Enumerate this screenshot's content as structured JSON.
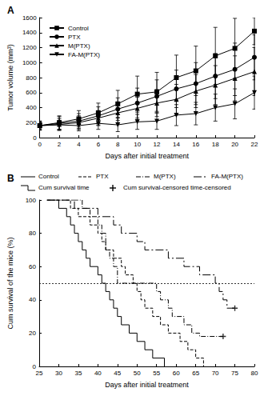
{
  "chart_data": [
    {
      "type": "line",
      "title": "A",
      "x_label": "Days after initial treatment",
      "y_label": "Tumor volume (mm³)",
      "x": [
        0,
        2,
        4,
        6,
        8,
        10,
        12,
        14,
        16,
        18,
        20,
        22
      ],
      "xlim": [
        0,
        22
      ],
      "xticks": [
        0,
        2,
        4,
        6,
        8,
        10,
        12,
        14,
        16,
        18,
        20,
        22
      ],
      "ylim": [
        0,
        1600
      ],
      "yticks": [
        0,
        200,
        400,
        600,
        800,
        1000,
        1200,
        1400,
        1600
      ],
      "grid": false,
      "legend": "upper left",
      "series": [
        {
          "name": "Control",
          "color": "#000000",
          "marker": "square",
          "values": [
            160,
            200,
            250,
            330,
            450,
            580,
            610,
            800,
            890,
            1090,
            1190,
            1420
          ],
          "errors": [
            60,
            90,
            110,
            130,
            180,
            240,
            260,
            300,
            330,
            380,
            400,
            180
          ]
        },
        {
          "name": "PTX",
          "color": "#000000",
          "marker": "circle",
          "values": [
            160,
            190,
            220,
            290,
            380,
            460,
            550,
            650,
            720,
            820,
            910,
            1070
          ],
          "errors": [
            60,
            90,
            100,
            120,
            150,
            200,
            220,
            250,
            280,
            300,
            350,
            300
          ]
        },
        {
          "name": "M(PTX)",
          "color": "#000000",
          "marker": "triangle",
          "values": [
            160,
            175,
            200,
            260,
            330,
            390,
            460,
            510,
            620,
            700,
            790,
            880
          ],
          "errors": [
            50,
            80,
            90,
            100,
            130,
            150,
            180,
            200,
            220,
            260,
            300,
            320
          ]
        },
        {
          "name": "FA-M(PTX)",
          "color": "#000000",
          "marker": "triangle_down",
          "values": [
            160,
            170,
            160,
            190,
            170,
            210,
            220,
            300,
            320,
            400,
            450,
            600
          ],
          "errors": [
            40,
            60,
            70,
            80,
            90,
            100,
            110,
            140,
            150,
            180,
            200,
            220
          ]
        }
      ]
    },
    {
      "type": "step",
      "title": "B",
      "x_label": "Days after initial treatment",
      "y_label": "Cum survival of the mice (%)",
      "xlim": [
        25,
        80
      ],
      "xticks": [
        25,
        30,
        35,
        40,
        45,
        50,
        55,
        60,
        65,
        70,
        75,
        80
      ],
      "ylim": [
        0,
        100
      ],
      "yticks": [
        0,
        20,
        40,
        60,
        80,
        100
      ],
      "grid": false,
      "legend": "top",
      "hline": 50,
      "survival_label": "Cum survival time",
      "censored_label": "Cum survival-censored time-censored",
      "series": [
        {
          "name": "Control",
          "color": "#000000",
          "line_style": "solid",
          "x": [
            27,
            30,
            32,
            33,
            34,
            35,
            36,
            37,
            38,
            40,
            41,
            42,
            43,
            44,
            45,
            46,
            48,
            50,
            52,
            54,
            57
          ],
          "values": [
            100,
            95,
            90,
            85,
            80,
            75,
            70,
            65,
            60,
            55,
            50,
            45,
            40,
            35,
            30,
            25,
            20,
            15,
            10,
            5,
            0
          ],
          "censored": []
        },
        {
          "name": "PTX",
          "color": "#000000",
          "line_style": "dashed",
          "x": [
            27,
            33,
            35,
            38,
            40,
            41,
            42,
            44,
            46,
            47,
            49,
            50,
            51,
            52,
            54,
            56,
            58,
            61,
            63,
            65,
            67
          ],
          "values": [
            100,
            95,
            90,
            85,
            80,
            75,
            70,
            65,
            60,
            55,
            50,
            45,
            40,
            35,
            30,
            25,
            20,
            15,
            10,
            5,
            0
          ],
          "censored": []
        },
        {
          "name": "M(PTX)",
          "color": "#000000",
          "line_style": "dashdot",
          "x": [
            27,
            36,
            38,
            40,
            41,
            42,
            43,
            44,
            45,
            55,
            56,
            58,
            59,
            62,
            64,
            66,
            72
          ],
          "values": [
            100,
            95,
            90,
            85,
            80,
            70,
            65,
            60,
            50,
            45,
            40,
            35,
            30,
            25,
            20,
            18,
            18
          ],
          "censored": [
            [
              72,
              18
            ]
          ]
        },
        {
          "name": "FA-M(PTX)",
          "color": "#000000",
          "line_style": "longdashdot",
          "x": [
            27,
            34,
            40,
            44,
            46,
            50,
            52,
            58,
            62,
            66,
            70,
            71,
            72,
            73,
            75
          ],
          "values": [
            100,
            95,
            90,
            85,
            80,
            75,
            70,
            65,
            60,
            55,
            50,
            45,
            40,
            35,
            35
          ],
          "censored": [
            [
              75,
              35
            ]
          ]
        }
      ]
    }
  ]
}
